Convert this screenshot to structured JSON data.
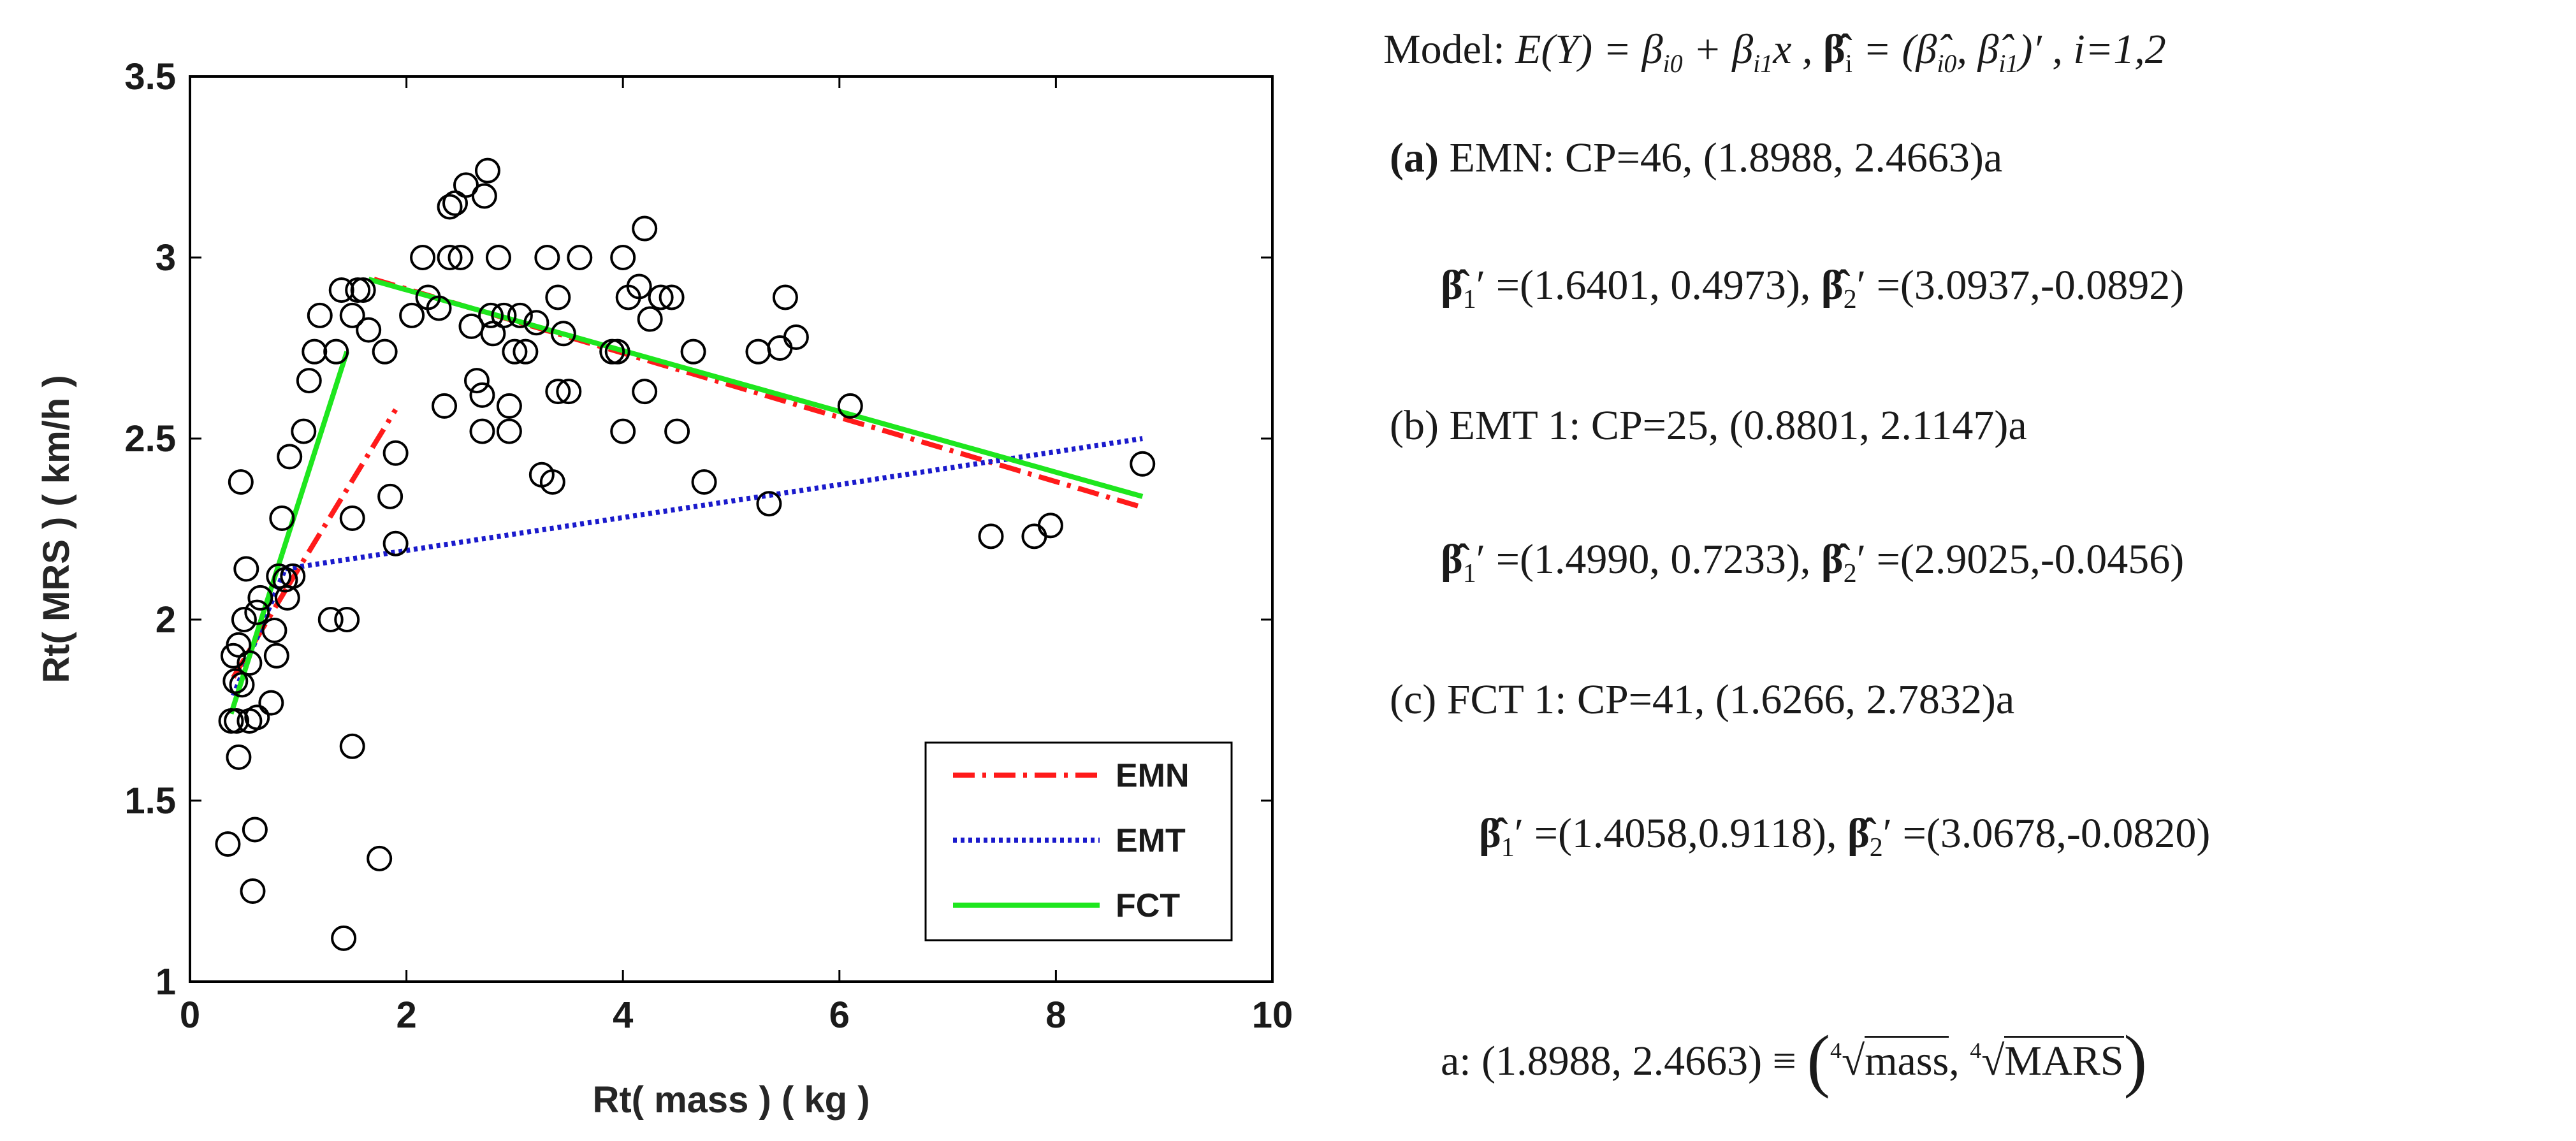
{
  "chart_data": {
    "type": "scatter",
    "title": "",
    "xlabel": "Rt( mass ) ( kg )",
    "ylabel": "Rt( MRS ) ( km/h )",
    "xlim": [
      0,
      10
    ],
    "ylim": [
      1,
      3.5
    ],
    "xticks": [
      0,
      2,
      4,
      6,
      8,
      10
    ],
    "yticks": [
      1,
      1.5,
      2,
      2.5,
      3,
      3.5
    ],
    "xtick_labels": [
      "0",
      "2",
      "4",
      "6",
      "8",
      "10"
    ],
    "ytick_labels": [
      "1",
      "1.5",
      "2",
      "2.5",
      "3",
      "3.5"
    ],
    "grid": false,
    "legend_position": "bottom-right",
    "points": [
      [
        0.35,
        1.38
      ],
      [
        0.38,
        1.72
      ],
      [
        0.4,
        1.9
      ],
      [
        0.42,
        1.83
      ],
      [
        0.43,
        1.72
      ],
      [
        0.45,
        1.62
      ],
      [
        0.45,
        1.93
      ],
      [
        0.47,
        2.38
      ],
      [
        0.48,
        1.82
      ],
      [
        0.5,
        2.0
      ],
      [
        0.52,
        2.14
      ],
      [
        0.55,
        1.88
      ],
      [
        0.55,
        1.72
      ],
      [
        0.58,
        1.25
      ],
      [
        0.6,
        1.42
      ],
      [
        0.62,
        1.73
      ],
      [
        0.62,
        2.02
      ],
      [
        0.65,
        2.06
      ],
      [
        0.75,
        1.77
      ],
      [
        0.78,
        1.97
      ],
      [
        0.8,
        1.9
      ],
      [
        0.82,
        2.12
      ],
      [
        0.85,
        2.28
      ],
      [
        0.88,
        2.11
      ],
      [
        0.9,
        2.06
      ],
      [
        0.92,
        2.45
      ],
      [
        0.95,
        2.12
      ],
      [
        1.05,
        2.52
      ],
      [
        1.1,
        2.66
      ],
      [
        1.15,
        2.74
      ],
      [
        1.2,
        2.84
      ],
      [
        1.3,
        2.0
      ],
      [
        1.35,
        2.74
      ],
      [
        1.4,
        2.91
      ],
      [
        1.42,
        1.12
      ],
      [
        1.45,
        2.0
      ],
      [
        1.5,
        1.65
      ],
      [
        1.5,
        2.28
      ],
      [
        1.5,
        2.84
      ],
      [
        1.55,
        2.91
      ],
      [
        1.6,
        2.91
      ],
      [
        1.65,
        2.8
      ],
      [
        1.75,
        1.34
      ],
      [
        1.8,
        2.74
      ],
      [
        1.85,
        2.34
      ],
      [
        1.9,
        2.21
      ],
      [
        1.9,
        2.46
      ],
      [
        2.05,
        2.84
      ],
      [
        2.15,
        3.0
      ],
      [
        2.2,
        2.89
      ],
      [
        2.3,
        2.86
      ],
      [
        2.35,
        2.59
      ],
      [
        2.4,
        3.0
      ],
      [
        2.4,
        3.14
      ],
      [
        2.45,
        3.15
      ],
      [
        2.5,
        3.0
      ],
      [
        2.55,
        3.2
      ],
      [
        2.6,
        2.81
      ],
      [
        2.65,
        2.66
      ],
      [
        2.7,
        2.62
      ],
      [
        2.7,
        2.52
      ],
      [
        2.72,
        3.17
      ],
      [
        2.75,
        3.24
      ],
      [
        2.78,
        2.84
      ],
      [
        2.8,
        2.79
      ],
      [
        2.85,
        3.0
      ],
      [
        2.9,
        2.84
      ],
      [
        2.95,
        2.52
      ],
      [
        2.95,
        2.59
      ],
      [
        3.0,
        2.74
      ],
      [
        3.05,
        2.84
      ],
      [
        3.1,
        2.74
      ],
      [
        3.2,
        2.82
      ],
      [
        3.25,
        2.4
      ],
      [
        3.3,
        3.0
      ],
      [
        3.35,
        2.38
      ],
      [
        3.4,
        2.89
      ],
      [
        3.4,
        2.63
      ],
      [
        3.45,
        2.79
      ],
      [
        3.5,
        2.63
      ],
      [
        3.6,
        3.0
      ],
      [
        3.9,
        2.74
      ],
      [
        3.95,
        2.74
      ],
      [
        4.0,
        3.0
      ],
      [
        4.0,
        2.52
      ],
      [
        4.05,
        2.89
      ],
      [
        4.15,
        2.92
      ],
      [
        4.2,
        3.08
      ],
      [
        4.2,
        2.63
      ],
      [
        4.25,
        2.83
      ],
      [
        4.35,
        2.89
      ],
      [
        4.45,
        2.89
      ],
      [
        4.5,
        2.52
      ],
      [
        4.65,
        2.74
      ],
      [
        4.75,
        2.38
      ],
      [
        5.25,
        2.74
      ],
      [
        5.35,
        2.32
      ],
      [
        5.45,
        2.75
      ],
      [
        5.5,
        2.89
      ],
      [
        5.6,
        2.78
      ],
      [
        6.1,
        2.59
      ],
      [
        7.4,
        2.23
      ],
      [
        7.8,
        2.23
      ],
      [
        7.95,
        2.26
      ],
      [
        8.8,
        2.43
      ]
    ],
    "series": [
      {
        "name": "EMN",
        "style": "dash-dot",
        "color": "#ff1a1a",
        "segments": [
          [
            [
              0.4,
              1.84
            ],
            [
              0.9,
              2.09
            ]
          ],
          [
            [
              0.9,
              2.09
            ],
            [
              1.9,
              2.58
            ]
          ],
          [
            [
              1.7,
              2.94
            ],
            [
              8.8,
              2.31
            ]
          ]
        ]
      },
      {
        "name": "EMT",
        "style": "dotted",
        "color": "#1a1acc",
        "segments": [
          [
            [
              0.4,
              1.79
            ],
            [
              0.88,
              2.14
            ]
          ],
          [
            [
              0.88,
              2.14
            ],
            [
              8.8,
              2.5
            ]
          ]
        ]
      },
      {
        "name": "FCT",
        "style": "solid",
        "color": "#1ee61e",
        "segments": [
          [
            [
              0.38,
              1.74
            ],
            [
              0.85,
              2.18
            ]
          ],
          [
            [
              0.85,
              2.18
            ],
            [
              1.45,
              2.74
            ]
          ],
          [
            [
              1.65,
              2.94
            ],
            [
              8.8,
              2.34
            ]
          ]
        ]
      }
    ],
    "legend": [
      "EMN",
      "EMT",
      "FCT"
    ]
  },
  "annotations": {
    "model": {
      "prefix": "Model: ",
      "eq1": "E(Y) = β",
      "sub1": "i0",
      "eq2": " + β",
      "sub2": "i1",
      "eq3": "x , ",
      "eq4": "β̂",
      "sub4": "i",
      "eq5": " = (β̂",
      "sub5": "i0",
      "eq6": ", β̂",
      "sub6": "i1",
      "eq7": ")′ , i=1,2"
    },
    "a": {
      "tag": "(a)",
      "text": " EMN: CP=46, (1.8988, 2.4663)a",
      "b1": "β̂",
      "b1sub": "1",
      "b1val": "′ =(1.6401, 0.4973), ",
      "b2": "β̂",
      "b2sub": "2",
      "b2val": "′ =(3.0937,-0.0892)"
    },
    "b": {
      "text": "(b) EMT 1: CP=25, (0.8801, 2.1147)a",
      "b1": "β̂",
      "b1sub": "1",
      "b1val": "′ =(1.4990, 0.7233),  ",
      "b2": "β̂",
      "b2sub": "2",
      "b2val": "′ =(2.9025,-0.0456)"
    },
    "c": {
      "text": "(c) FCT 1: CP=41, (1.6266, 2.7832)a",
      "b1": "β̂",
      "b1sub": "1",
      "b1val": "′ =(1.4058,0.9118),  ",
      "b2": "β̂",
      "b2sub": "2",
      "b2val": "′ =(3.0678,-0.0820)"
    },
    "footnote": {
      "prefix": "a: (1.8988, 2.4663) ≡ ",
      "root_index": "4",
      "term1": "mass",
      "sep": ", ",
      "term2": "MARS"
    }
  },
  "colors": {
    "axis": "#000000",
    "marker": "#000000",
    "emn": "#ff1a1a",
    "emt": "#1a1acc",
    "fct": "#1ee61e"
  }
}
